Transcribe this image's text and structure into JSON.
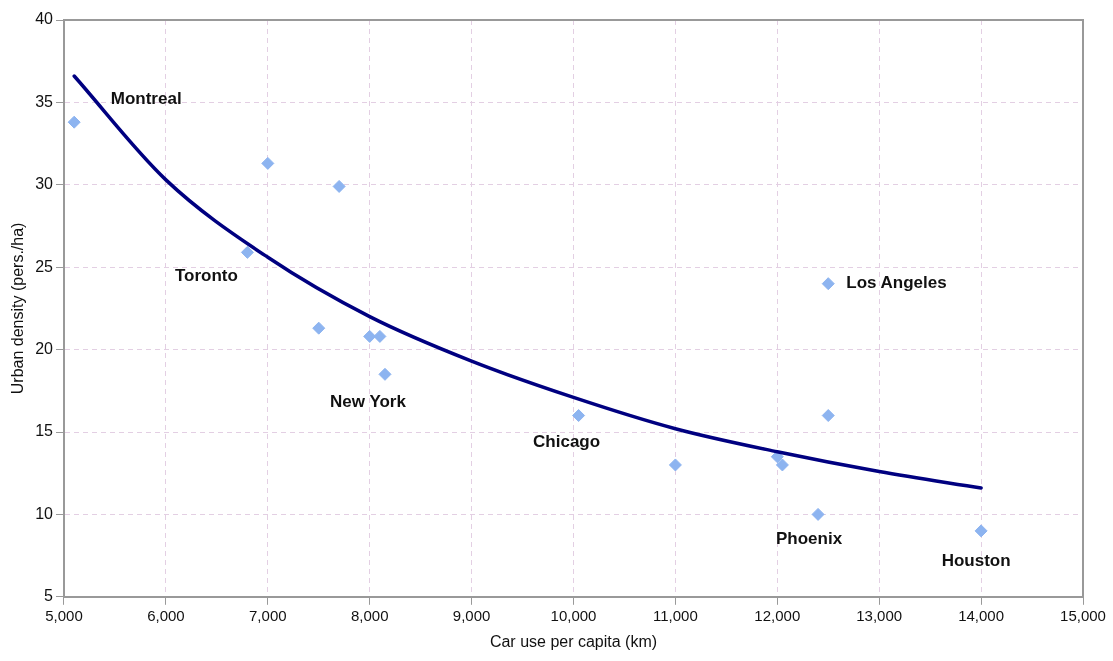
{
  "chart_data": {
    "type": "scatter",
    "xlabel": "Car use per capita (km)",
    "ylabel": "Urban density (pers./ha)",
    "xlim": [
      5000,
      15000
    ],
    "xticks": [
      {
        "value": 5000,
        "label": "5,000"
      },
      {
        "value": 6000,
        "label": "6,000"
      },
      {
        "value": 7000,
        "label": "7,000"
      },
      {
        "value": 8000,
        "label": "8,000"
      },
      {
        "value": 9000,
        "label": "9,000"
      },
      {
        "value": 10000,
        "label": "10,000"
      },
      {
        "value": 11000,
        "label": "11,000"
      },
      {
        "value": 12000,
        "label": "12,000"
      },
      {
        "value": 13000,
        "label": "13,000"
      },
      {
        "value": 14000,
        "label": "14,000"
      },
      {
        "value": 15000,
        "label": "15,000"
      }
    ],
    "ylim": [
      5,
      40
    ],
    "yticks": [
      5,
      10,
      15,
      20,
      25,
      30,
      35,
      40
    ],
    "grid": true,
    "marker": "diamond",
    "series": [
      {
        "color": "#8db4f0",
        "x": [
          5100,
          6800,
          7000,
          7700,
          7500,
          8000,
          8100,
          8150,
          10050,
          11000,
          12000,
          12050,
          12400,
          12500,
          12500,
          14000
        ],
        "values": [
          33.8,
          25.9,
          31.3,
          29.9,
          21.3,
          20.8,
          20.8,
          18.5,
          16,
          13,
          13.5,
          13,
          10,
          16,
          24,
          9
        ]
      },
      {
        "type": "line",
        "color": "#000080",
        "marker": "none",
        "x": [
          5100,
          6000,
          7000,
          8000,
          9000,
          10000,
          11000,
          12000,
          13000,
          14000
        ],
        "values": [
          36.6,
          30.3,
          25.6,
          22.0,
          19.3,
          17.1,
          15.2,
          13.8,
          12.6,
          11.6
        ]
      }
    ],
    "annotations": [
      {
        "text": "Montreal",
        "x": 5100,
        "y": 33.8
      },
      {
        "text": "Toronto",
        "x": 6800,
        "y": 25.9
      },
      {
        "text": "New York",
        "x": 8150,
        "y": 18.5
      },
      {
        "text": "Chicago",
        "x": 10050,
        "y": 16
      },
      {
        "text": "Los Angeles",
        "x": 12500,
        "y": 24
      },
      {
        "text": "Phoenix",
        "x": 12400,
        "y": 10
      },
      {
        "text": "Houston",
        "x": 14000,
        "y": 9
      }
    ]
  }
}
